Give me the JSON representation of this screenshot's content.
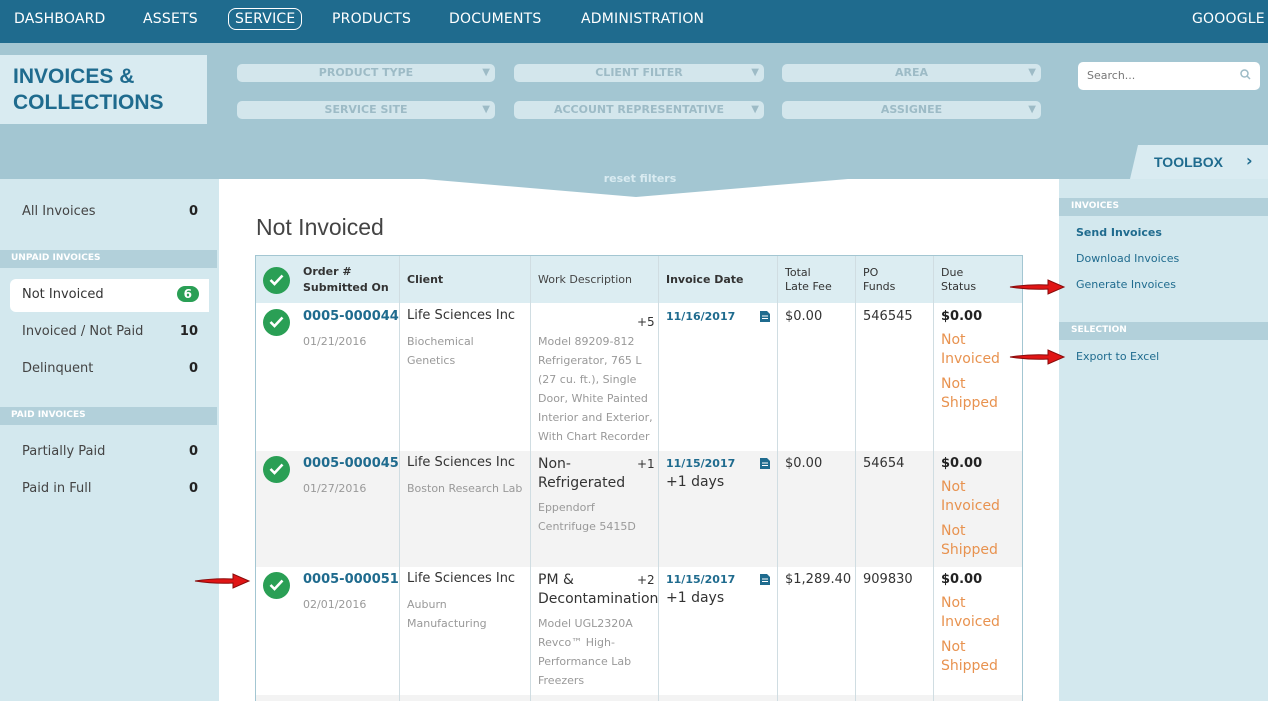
{
  "nav": {
    "items": [
      {
        "label": "DASHBOARD"
      },
      {
        "label": "ASSETS"
      },
      {
        "label": "SERVICE"
      },
      {
        "label": "PRODUCTS"
      },
      {
        "label": "DOCUMENTS"
      },
      {
        "label": "ADMINISTRATION"
      }
    ],
    "active": "SERVICE",
    "account": "GOOOGLE"
  },
  "page": {
    "title_line1": "INVOICES &",
    "title_line2": "COLLECTIONS"
  },
  "filters": [
    {
      "label": "PRODUCT TYPE"
    },
    {
      "label": "CLIENT FILTER"
    },
    {
      "label": "AREA"
    },
    {
      "label": "SERVICE SITE"
    },
    {
      "label": "ACCOUNT REPRESENTATIVE"
    },
    {
      "label": "ASSIGNEE"
    }
  ],
  "search": {
    "placeholder": "Search..."
  },
  "reset_label": "reset filters",
  "toolbox_label": "TOOLBOX",
  "left": {
    "all": {
      "label": "All Invoices",
      "count": "0"
    },
    "unpaid_header": "UNPAID INVOICES",
    "unpaid": [
      {
        "label": "Not Invoiced",
        "count": "6"
      },
      {
        "label": "Invoiced / Not Paid",
        "count": "10"
      },
      {
        "label": "Delinquent",
        "count": "0"
      }
    ],
    "paid_header": "PAID INVOICES",
    "paid": [
      {
        "label": "Partially Paid",
        "count": "0"
      },
      {
        "label": "Paid in Full",
        "count": "0"
      }
    ]
  },
  "main": {
    "title": "Not Invoiced",
    "columns": {
      "order_l1": "Order #",
      "order_l2": "Submitted On",
      "client": "Client",
      "work": "Work Description",
      "invoice_date": "Invoice Date",
      "fee_l1": "Total",
      "fee_l2": "Late Fee",
      "po_l1": "PO",
      "po_l2": "Funds",
      "due_l1": "Due",
      "due_l2": "Status"
    },
    "rows": [
      {
        "order": "0005-000044",
        "submitted": "01/21/2016",
        "client": "Life Sciences Inc",
        "client_sub_l1": "Biochemical",
        "client_sub_l2": "Genetics",
        "plus": "+5",
        "work_sub": [
          "Model 89209-812",
          "Refrigerator, 765 L",
          "(27 cu. ft.), Single",
          "Door, White Painted",
          "Interior and Exterior,",
          "With Chart Recorder"
        ],
        "date": "11/16/2017",
        "fee": "$0.00",
        "po": "546545",
        "due": "$0.00",
        "status": [
          "Not",
          "Invoiced",
          "Not",
          "Shipped"
        ]
      },
      {
        "order": "0005-000045",
        "submitted": "01/27/2016",
        "client": "Life Sciences Inc",
        "client_sub_l1": "Boston Research Lab",
        "work_l1": "Non-",
        "work_l2": "Refrigerated",
        "plus": "+1",
        "work_sub": [
          "Eppendorf",
          "Centrifuge 5415D"
        ],
        "date": "11/15/2017",
        "date_sub": "+1 days",
        "fee": "$0.00",
        "po": "54654",
        "due": "$0.00",
        "status": [
          "Not",
          "Invoiced",
          "Not",
          "Shipped"
        ]
      },
      {
        "order": "0005-000051",
        "submitted": "02/01/2016",
        "client": "Life Sciences Inc",
        "client_sub_l1": "Auburn",
        "client_sub_l2": "Manufacturing",
        "work_l1": "PM &",
        "work_l2": "Decontamination",
        "plus": "+2",
        "work_sub": [
          "Model UGL2320A",
          "Revco™ High-",
          "Performance Lab",
          "Freezers"
        ],
        "date": "11/15/2017",
        "date_sub": "+1 days",
        "fee": "$1,289.40",
        "po": "909830",
        "due": "$0.00",
        "status": [
          "Not",
          "Invoiced",
          "Not",
          "Shipped"
        ]
      }
    ]
  },
  "toolbox": {
    "invoices_header": "INVOICES",
    "send": "Send Invoices",
    "download": "Download Invoices",
    "generate": "Generate Invoices",
    "selection_header": "SELECTION",
    "export": "Export to Excel"
  }
}
